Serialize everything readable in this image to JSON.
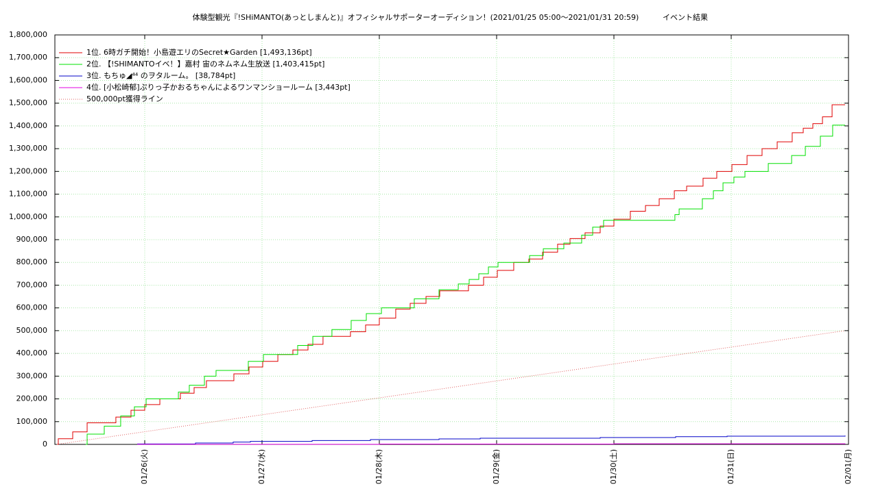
{
  "chart_data": {
    "type": "line",
    "line_style": "steps",
    "title": "体験型観光『!SHiMANTO(あっとしまんと)』オフィシャルサポーターオーディション！(2021/01/25 05:00～2021/01/31 20:59)",
    "subtitle": "イベント結果",
    "xlim": [
      25.234,
      32
    ],
    "xticks": [
      {
        "value": 26,
        "label": "01/26(火)"
      },
      {
        "value": 27,
        "label": "01/27(水)"
      },
      {
        "value": 28,
        "label": "01/28(木)"
      },
      {
        "value": 29,
        "label": "01/29(金)"
      },
      {
        "value": 30,
        "label": "01/30(土)"
      },
      {
        "value": 31,
        "label": "01/31(日)"
      },
      {
        "value": 32,
        "label": "02/01(月)"
      }
    ],
    "ylim": [
      0,
      1800000
    ],
    "yticks": [
      0,
      {
        "value": 100000,
        "label": "100,000"
      },
      {
        "value": 200000,
        "label": "200,000"
      },
      {
        "value": 300000,
        "label": "300,000"
      },
      {
        "value": 400000,
        "label": "400,000"
      },
      {
        "value": 500000,
        "label": "500,000"
      },
      {
        "value": 600000,
        "label": "600,000"
      },
      {
        "value": 700000,
        "label": "700,000"
      },
      {
        "value": 800000,
        "label": "800,000"
      },
      {
        "value": 900000,
        "label": "900,000"
      },
      {
        "value": 1000000,
        "label": "1,000,000"
      },
      {
        "value": 1100000,
        "label": "1,100,000"
      },
      {
        "value": 1200000,
        "label": "1,200,000"
      },
      {
        "value": 1300000,
        "label": "1,300,000"
      },
      {
        "value": 1400000,
        "label": "1,400,000"
      },
      {
        "value": 1500000,
        "label": "1,500,000"
      },
      {
        "value": 1600000,
        "label": "1,600,000"
      },
      {
        "value": 1700000,
        "label": "1,700,000"
      },
      {
        "value": 1800000,
        "label": "1,800,000"
      }
    ],
    "grid": true,
    "legend": "upper left",
    "series": [
      {
        "name": "1位. 6時ガチ開始！小島遊エリのSecret★Garden [1,493,136pt]",
        "color": "#e00000",
        "style": "steps",
        "x": [
          25.251,
          25.263,
          25.386,
          25.509,
          25.754,
          25.883,
          26.0,
          26.129,
          26.304,
          26.421,
          26.526,
          26.76,
          26.889,
          27.006,
          27.135,
          27.263,
          27.392,
          27.52,
          27.754,
          27.883,
          28.0,
          28.14,
          28.263,
          28.398,
          28.515,
          28.76,
          28.889,
          29.006,
          29.146,
          29.275,
          29.392,
          29.52,
          29.626,
          29.754,
          29.883,
          30.0,
          30.14,
          30.269,
          30.386,
          30.515,
          30.62,
          30.76,
          30.877,
          31.006,
          31.135,
          31.263,
          31.392,
          31.52,
          31.614,
          31.696,
          31.778,
          31.86,
          31.971
        ],
        "values": [
          0,
          25000,
          55000,
          95000,
          120000,
          150000,
          175000,
          200000,
          225000,
          250000,
          280000,
          310000,
          340000,
          365000,
          395000,
          415000,
          440000,
          475000,
          495000,
          525000,
          555000,
          595000,
          620000,
          650000,
          675000,
          700000,
          735000,
          765000,
          800000,
          815000,
          845000,
          880000,
          905000,
          930000,
          960000,
          990000,
          1025000,
          1050000,
          1080000,
          1115000,
          1135000,
          1170000,
          1200000,
          1230000,
          1270000,
          1300000,
          1330000,
          1370000,
          1390000,
          1410000,
          1440000,
          1493136,
          1493136
        ]
      },
      {
        "name": "2位. 【!SHIMANTOイベ！】嘉村 宙のネムネム生放送 [1,403,415pt]",
        "color": "#00e000",
        "style": "steps",
        "x": [
          25.497,
          25.509,
          25.655,
          25.795,
          25.912,
          26.012,
          26.287,
          26.38,
          26.509,
          26.608,
          26.883,
          27.012,
          27.304,
          27.433,
          27.596,
          27.76,
          27.889,
          28.018,
          28.298,
          28.509,
          28.673,
          28.766,
          28.848,
          28.93,
          29.012,
          29.281,
          29.398,
          29.573,
          29.725,
          29.819,
          29.912,
          30.52,
          30.556,
          30.754,
          30.848,
          30.93,
          31.023,
          31.117,
          31.316,
          31.515,
          31.632,
          31.76,
          31.865,
          31.971
        ],
        "values": [
          0,
          45000,
          80000,
          125000,
          165000,
          200000,
          230000,
          260000,
          300000,
          325000,
          365000,
          395000,
          435000,
          475000,
          505000,
          545000,
          575000,
          600000,
          640000,
          680000,
          705000,
          725000,
          750000,
          780000,
          800000,
          830000,
          860000,
          885000,
          920000,
          955000,
          985000,
          1010000,
          1035000,
          1080000,
          1115000,
          1150000,
          1175000,
          1200000,
          1235000,
          1270000,
          1310000,
          1355000,
          1403415,
          1403415
        ]
      },
      {
        "name": "3位. もちゅ◢⁴⁴ のヲタルーム。 [38,784pt]",
        "color": "#0000c8",
        "style": "steps",
        "x": [
          25.936,
          26.433,
          26.754,
          26.901,
          27.427,
          27.924,
          28.509,
          28.86,
          29.883,
          30.526,
          30.965,
          31.971
        ],
        "values": [
          2000,
          6000,
          10000,
          13000,
          17000,
          21000,
          24000,
          27000,
          30000,
          34000,
          36000,
          38784
        ]
      },
      {
        "name": "4位. [小松崎郁]ぷりっ子かおるちゃんによるワンマンショールーム [3,443pt]",
        "color": "#e000e0",
        "style": "steps",
        "x": [
          25.936,
          28.0,
          30.0,
          31.971
        ],
        "values": [
          500,
          1500,
          2500,
          3443
        ]
      },
      {
        "name": "500,000pt獲得ライン",
        "color": "#e06060",
        "style": "dotted",
        "x": [
          25.251,
          31.971
        ],
        "values": [
          0,
          500000
        ]
      }
    ]
  }
}
